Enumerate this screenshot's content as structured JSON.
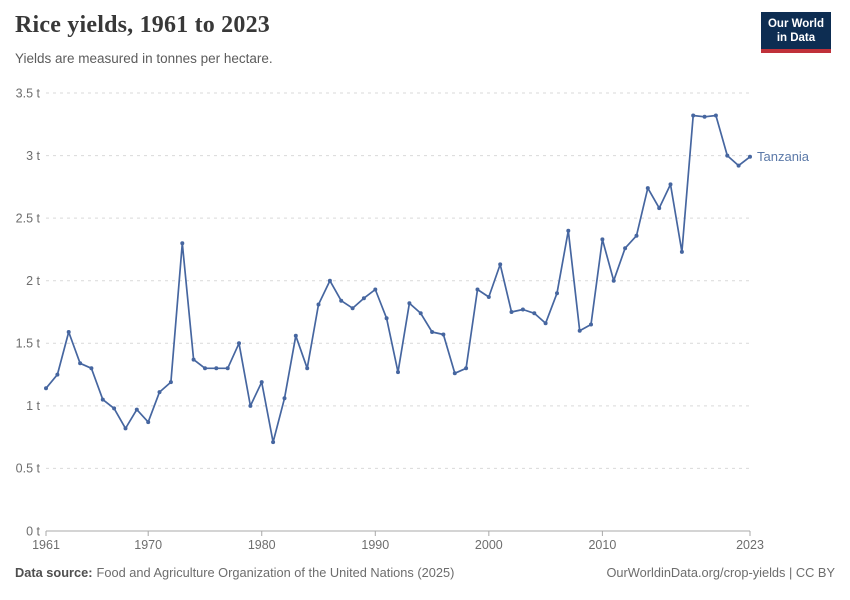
{
  "header": {
    "title": "Rice yields, 1961 to 2023",
    "subtitle": "Yields are measured in tonnes per hectare.",
    "logo": {
      "line1": "Our World",
      "line2": "in Data"
    }
  },
  "footer": {
    "datasource_label": "Data source:",
    "datasource_text": "Food and Agriculture Organization of the United Nations (2025)",
    "attribution": "OurWorldinData.org/crop-yields | CC BY"
  },
  "colors": {
    "line": "#4666a0",
    "entity_label": "#5b79a8",
    "grid": "#d9d9d9",
    "axis": "#a8a8a8",
    "tick_text": "#6e6e6e",
    "logo_bg": "#0d2d52",
    "logo_stripe": "#c0313a"
  },
  "chart_data": {
    "type": "line",
    "title": "Rice yields, 1961 to 2023",
    "subtitle": "Yields are measured in tonnes per hectare.",
    "entity": "Tanzania",
    "unit": "tonnes per hectare",
    "grid": "horizontal-dashed",
    "legend_position": "end-of-line-label",
    "ylim": [
      0,
      3.5
    ],
    "ytick_interval": 0.5,
    "ytick_labels": [
      "0 t",
      "0.5 t",
      "1 t",
      "1.5 t",
      "2 t",
      "2.5 t",
      "3 t",
      "3.5 t"
    ],
    "xticks": [
      1961,
      1970,
      1980,
      1990,
      2000,
      2010,
      2023
    ],
    "years": [
      1961,
      1962,
      1963,
      1964,
      1965,
      1966,
      1967,
      1968,
      1969,
      1970,
      1971,
      1972,
      1973,
      1974,
      1975,
      1976,
      1977,
      1978,
      1979,
      1980,
      1981,
      1982,
      1983,
      1984,
      1985,
      1986,
      1987,
      1988,
      1989,
      1990,
      1991,
      1992,
      1993,
      1994,
      1995,
      1996,
      1997,
      1998,
      1999,
      2000,
      2001,
      2002,
      2003,
      2004,
      2005,
      2006,
      2007,
      2008,
      2009,
      2010,
      2011,
      2012,
      2013,
      2014,
      2015,
      2016,
      2017,
      2018,
      2019,
      2020,
      2021,
      2022,
      2023
    ],
    "values": [
      1.14,
      1.25,
      1.59,
      1.34,
      1.3,
      1.05,
      0.98,
      0.82,
      0.97,
      0.87,
      1.11,
      1.19,
      2.3,
      1.37,
      1.3,
      1.3,
      1.3,
      1.5,
      1.0,
      1.19,
      0.71,
      1.06,
      1.56,
      1.3,
      1.81,
      2.0,
      1.84,
      1.78,
      1.86,
      1.93,
      1.7,
      1.27,
      1.82,
      1.74,
      1.59,
      1.57,
      1.26,
      1.3,
      1.93,
      1.87,
      2.13,
      1.75,
      1.77,
      1.74,
      1.66,
      1.9,
      2.4,
      1.6,
      1.65,
      2.33,
      2.0,
      2.26,
      2.36,
      2.74,
      2.58,
      2.77,
      2.23,
      3.32,
      3.31,
      3.32,
      3.0,
      2.92,
      2.99
    ]
  }
}
